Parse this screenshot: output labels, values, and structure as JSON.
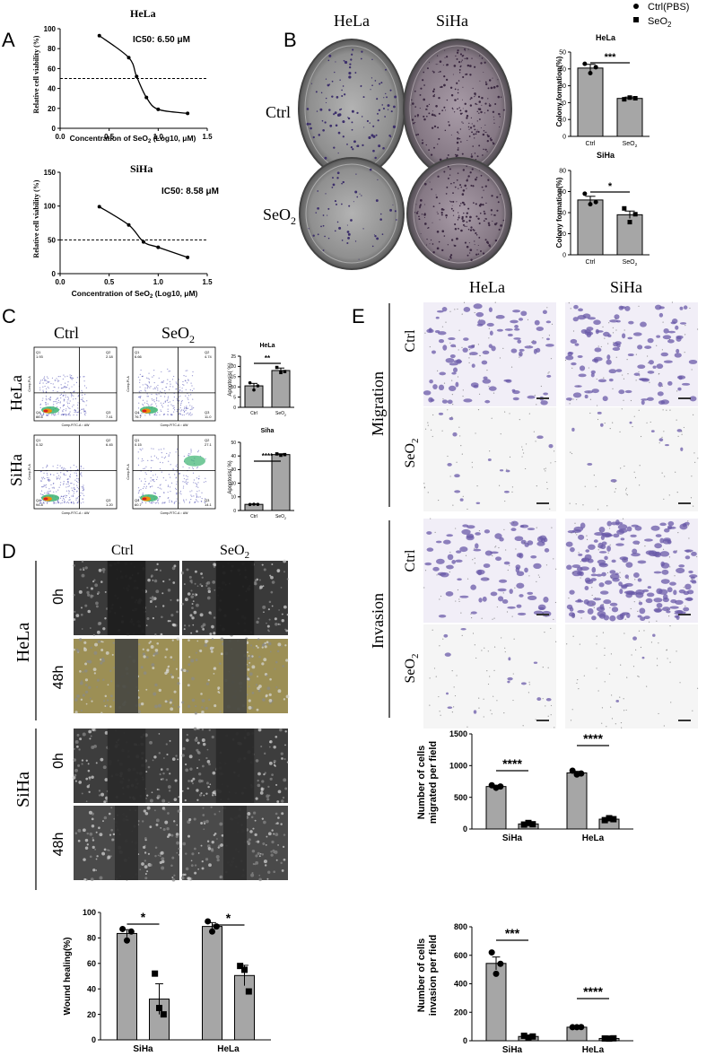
{
  "legend": {
    "ctrl_label": "Ctrl(PBS)",
    "seo2_label": "SeO",
    "seo2_sub": "2"
  },
  "panel_letters": [
    "A",
    "B",
    "C",
    "D",
    "E"
  ],
  "colors": {
    "bar_fill": "#a6a6a6",
    "stain_purple": "#6a5aa8",
    "dish_gray": "#8c8c8c",
    "scratch_dark": "#262626",
    "scratch_yellow": "#9c8f55"
  },
  "panel_a": {
    "hela_title": "HeLa",
    "hela_ic50": "IC50: 6.50 μM",
    "siha_title": "SiHa",
    "siha_ic50": "IC50: 8.58 μM",
    "ylabel": "Relative cell viability (%)",
    "xlabel_main": "Concentration of SeO",
    "xlabel_sub": "2",
    "xlabel_tail": " (Log10, μM)"
  },
  "panel_b": {
    "col_hela": "HeLa",
    "col_siha": "SiHa",
    "row_ctrl": "Ctrl",
    "row_seo2": "SeO",
    "row_seo2_sub": "2",
    "ylabel": "Colony formation(%)"
  },
  "panel_c": {
    "col_ctrl": "Ctrl",
    "col_seo2": "SeO",
    "col_seo2_sub": "2",
    "row_hela": "HeLa",
    "row_siha": "SiHa",
    "ylabel": "Apoptosis( %)",
    "flow_ylabel": "Comp-PI-A",
    "flow_xlabel": "Comp-FITC-A :: AW",
    "quadrants": [
      {
        "q1": "Q1",
        "v1": "1.93",
        "q2": "Q2",
        "v2": "2.18",
        "q4": "Q4",
        "v4": "88.6",
        "q3": "Q3",
        "v3": "7.41"
      },
      {
        "q1": "Q1",
        "v1": "6.66",
        "q2": "Q2",
        "v2": "4.74",
        "q4": "Q4",
        "v4": "76.7",
        "q3": "Q3",
        "v3": "11.0"
      },
      {
        "q1": "Q1",
        "v1": "0.32",
        "q2": "Q2",
        "v2": "6.45",
        "q4": "Q4",
        "v4": "94.8",
        "q3": "Q3",
        "v3": "1.20"
      },
      {
        "q1": "Q1",
        "v1": "0.15",
        "q2": "Q2",
        "v2": "27.1",
        "q4": "Q4",
        "v4": "60.7",
        "q3": "Q3",
        "v3": "14.1"
      }
    ]
  },
  "panel_d": {
    "col_ctrl": "Ctrl",
    "col_seo2": "SeO",
    "col_seo2_sub": "2",
    "row_hela": "HeLa",
    "row_siha": "SiHa",
    "t0": "0h",
    "t48": "48h",
    "ylabel": "Wound healing(%)"
  },
  "panel_e": {
    "col_hela": "HeLa",
    "col_siha": "SiHa",
    "migration": "Migration",
    "invasion": "Invasion",
    "row_ctrl": "Ctrl",
    "row_seo2": "SeO",
    "row_seo2_sub": "2",
    "mig_ylabel_1": "Number of cells",
    "mig_ylabel_2": "migrated per field",
    "inv_ylabel_1": "Number of cells",
    "inv_ylabel_2": "invasion per field"
  },
  "chart_data": [
    {
      "id": "a_hela",
      "type": "scatter",
      "title": "HeLa",
      "annotation": "IC50: 6.50 μM",
      "x": [
        0.4,
        0.7,
        0.78,
        0.88,
        1.0,
        1.3
      ],
      "y": [
        93,
        71,
        52,
        31,
        19,
        15
      ],
      "xlim": [
        0.0,
        1.5
      ],
      "ylim": [
        0,
        100
      ],
      "xticks": [
        "0.0",
        "0.5",
        "1.0",
        "1.5"
      ],
      "yticks": [
        "0",
        "20",
        "40",
        "60",
        "80",
        "100"
      ],
      "reference_line": 50,
      "fit_curve": true
    },
    {
      "id": "a_siha",
      "type": "scatter",
      "title": "SiHa",
      "annotation": "IC50: 8.58 μM",
      "x": [
        0.4,
        0.7,
        0.85,
        1.0,
        1.3
      ],
      "y": [
        99,
        72,
        47,
        39,
        24
      ],
      "xlim": [
        0.0,
        1.5
      ],
      "ylim": [
        0,
        150
      ],
      "xticks": [
        "0.0",
        "0.5",
        "1.0",
        "1.5"
      ],
      "yticks": [
        "0",
        "50",
        "100",
        "150"
      ],
      "reference_line": 50,
      "fit_curve": true
    },
    {
      "id": "b_hela",
      "type": "bar",
      "title": "HeLa",
      "categories": [
        "Ctrl",
        "SeO2"
      ],
      "tick_labels": [
        "Ctrl",
        "SeO"
      ],
      "values": [
        40.5,
        22.5
      ],
      "errors": [
        2.2,
        0.8
      ],
      "points": [
        [
          43,
          37.5,
          41
        ],
        [
          22,
          23,
          22.6
        ]
      ],
      "ylim": [
        0,
        50
      ],
      "yticks": [
        "0",
        "10",
        "20",
        "30",
        "40",
        "50"
      ],
      "ylabel": "Colony formation(%)",
      "significance": "***"
    },
    {
      "id": "b_siha",
      "type": "bar",
      "title": "SiHa",
      "categories": [
        "Ctrl",
        "SeO2"
      ],
      "tick_labels": [
        "Ctrl",
        "SeO"
      ],
      "values": [
        52,
        38
      ],
      "errors": [
        3.5,
        3.5
      ],
      "points": [
        [
          58,
          48,
          50
        ],
        [
          44,
          31,
          38.5
        ]
      ],
      "ylim": [
        0,
        80
      ],
      "yticks": [
        "0",
        "20",
        "40",
        "60",
        "80"
      ],
      "ylabel": "Colony formation(%)",
      "significance": "*"
    },
    {
      "id": "c_hela",
      "type": "bar",
      "title": "HeLa",
      "categories": [
        "Ctrl",
        "SeO2"
      ],
      "tick_labels": [
        "Ctrl",
        "SeO"
      ],
      "values": [
        10.5,
        18
      ],
      "errors": [
        1.2,
        1.2
      ],
      "points": [
        [
          12,
          8.5,
          10.5
        ],
        [
          19.5,
          17,
          17.5
        ]
      ],
      "ylim": [
        0,
        25
      ],
      "yticks": [
        "0",
        "5",
        "10",
        "15",
        "20",
        "25"
      ],
      "ylabel": "Apoptosis( %)",
      "significance": "**"
    },
    {
      "id": "c_siha",
      "type": "bar",
      "title": "Siha",
      "categories": [
        "Ctrl",
        "SeO2"
      ],
      "tick_labels": [
        "Ctrl",
        "SeO"
      ],
      "values": [
        4.5,
        41
      ],
      "errors": [
        0.3,
        0.6
      ],
      "points": [
        [
          4.4,
          4.6,
          4.5
        ],
        [
          41.5,
          40.5,
          41
        ]
      ],
      "ylim": [
        0,
        50
      ],
      "yticks": [
        "0",
        "10",
        "20",
        "30",
        "40",
        "50"
      ],
      "ylabel": "Apoptosis( %)",
      "significance": "****"
    },
    {
      "id": "d_wound",
      "type": "bar",
      "categories": [
        "SiHa",
        "HeLa"
      ],
      "groups": [
        "Ctrl",
        "SeO2"
      ],
      "series": [
        {
          "name": "Ctrl(PBS)",
          "values": [
            83.5,
            89
          ],
          "errors": [
            3,
            3
          ],
          "points": [
            [
              87,
              78,
              85
            ],
            [
              93,
              85,
              89
            ]
          ]
        },
        {
          "name": "SeO2",
          "values": [
            32,
            50.5
          ],
          "errors": [
            12,
            8
          ],
          "points": [
            [
              52,
              25,
              20
            ],
            [
              58,
              55,
              38
            ]
          ]
        }
      ],
      "ylim": [
        0,
        100
      ],
      "yticks": [
        "0",
        "20",
        "40",
        "60",
        "80",
        "100"
      ],
      "ylabel": "Wound healing(%)",
      "significance": [
        "*",
        "*"
      ]
    },
    {
      "id": "e_migration",
      "type": "bar",
      "categories": [
        "SiHa",
        "HeLa"
      ],
      "groups": [
        "Ctrl",
        "SeO2"
      ],
      "series": [
        {
          "name": "Ctrl(PBS)",
          "values": [
            670,
            885
          ],
          "errors": [
            20,
            25
          ],
          "points": [
            [
              690,
              650,
              670
            ],
            [
              920,
              860,
              875
            ]
          ]
        },
        {
          "name": "SeO2",
          "values": [
            80,
            155
          ],
          "errors": [
            10,
            12
          ],
          "points": [
            [
              70,
              95,
              75
            ],
            [
              140,
              170,
              155
            ]
          ]
        }
      ],
      "ylim": [
        0,
        1500
      ],
      "yticks": [
        "0",
        "500",
        "1000",
        "1500"
      ],
      "ylabel": "Number of cells migrated per field",
      "significance": [
        "****",
        "****"
      ]
    },
    {
      "id": "e_invasion",
      "type": "bar",
      "categories": [
        "SiHa",
        "HeLa"
      ],
      "groups": [
        "Ctrl",
        "SeO2"
      ],
      "series": [
        {
          "name": "Ctrl(PBS)",
          "values": [
            543,
            95
          ],
          "errors": [
            45,
            4
          ],
          "points": [
            [
              620,
              470,
              540
            ],
            [
              95,
              95,
              96
            ]
          ]
        },
        {
          "name": "SeO2",
          "values": [
            30,
            16
          ],
          "errors": [
            6,
            2
          ],
          "points": [
            [
              35,
              22,
              30
            ],
            [
              16,
              15,
              17
            ]
          ]
        }
      ],
      "ylim": [
        0,
        800
      ],
      "yticks": [
        "0",
        "200",
        "400",
        "600",
        "800"
      ],
      "ylabel": "Number of cells invasion per field",
      "significance": [
        "***",
        "****"
      ]
    }
  ]
}
